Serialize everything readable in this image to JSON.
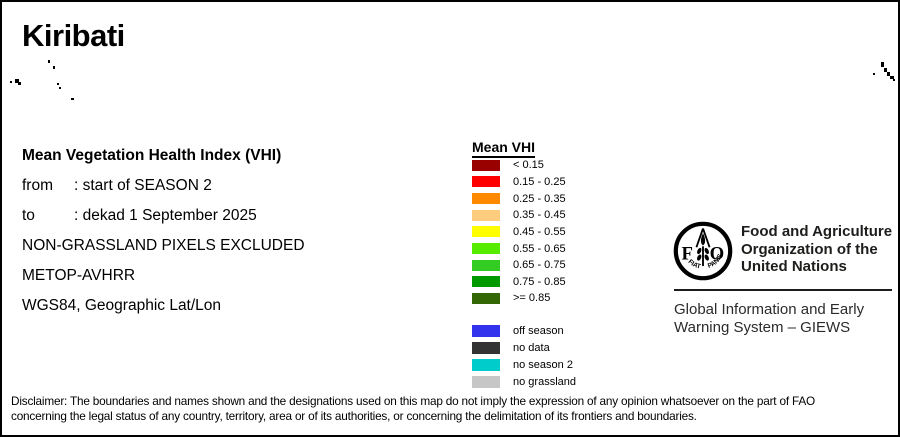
{
  "title": "Kiribati",
  "info": {
    "heading": "Mean Vegetation Health Index (VHI)",
    "from_label": "from",
    "from_value": ": start of SEASON 2",
    "to_label": "to",
    "to_value": ": dekad 1 September 2025",
    "note1": "NON-GRASSLAND PIXELS EXCLUDED",
    "note2": "METOP-AVHRR",
    "note3": "WGS84, Geographic Lat/Lon"
  },
  "legend": {
    "title": "Mean VHI",
    "classes": [
      {
        "label": "< 0.15",
        "color": "#990000"
      },
      {
        "label": "0.15 - 0.25",
        "color": "#FF0000"
      },
      {
        "label": "0.25 - 0.35",
        "color": "#FF8A00"
      },
      {
        "label": "0.35 - 0.45",
        "color": "#FFCC7E"
      },
      {
        "label": "0.45 - 0.55",
        "color": "#FFFF00"
      },
      {
        "label": "0.55 - 0.65",
        "color": "#55EC00"
      },
      {
        "label": "0.65 - 0.75",
        "color": "#33CC22"
      },
      {
        "label": "0.75 - 0.85",
        "color": "#009900"
      },
      {
        "label": ">= 0.85",
        "color": "#336605"
      }
    ],
    "extra_classes": [
      {
        "label": "off season",
        "color": "#3333EE"
      },
      {
        "label": "no data",
        "color": "#333333"
      },
      {
        "label": "no season 2",
        "color": "#00CCCC"
      },
      {
        "label": "no grassland",
        "color": "#C6C6C6"
      }
    ]
  },
  "org": {
    "logo": {
      "f": "F",
      "a": "A",
      "o": "O",
      "motto_left": "FIAT",
      "motto_right": "PANIS"
    },
    "name_lines": [
      "Food and Agriculture",
      "Organization of the",
      "United Nations"
    ],
    "system_lines": [
      "Global Information and Early",
      "Warning System – GIEWS"
    ]
  },
  "disclaimer": {
    "line1": "Disclaimer: The boundaries and names shown and the designations used on this map do not imply the expression of any opinion whatsoever on the part of FAO",
    "line2": "concerning the legal status of any country, territory, area or of its authorities, or concerning the delimitation of its frontiers and boundaries."
  },
  "map": {
    "islands": [
      [
        46,
        58,
        2,
        3
      ],
      [
        51,
        64,
        2,
        3
      ],
      [
        8,
        79,
        2,
        2
      ],
      [
        13,
        77,
        4,
        4
      ],
      [
        16,
        80,
        3,
        3
      ],
      [
        55,
        81,
        2,
        2
      ],
      [
        57,
        85,
        2,
        2
      ],
      [
        69,
        96,
        3,
        2
      ],
      [
        871,
        71,
        2,
        2
      ],
      [
        879,
        60,
        3,
        5
      ],
      [
        882,
        66,
        3,
        4
      ],
      [
        885,
        70,
        3,
        4
      ],
      [
        888,
        74,
        4,
        3
      ],
      [
        891,
        77,
        2,
        2
      ]
    ]
  }
}
